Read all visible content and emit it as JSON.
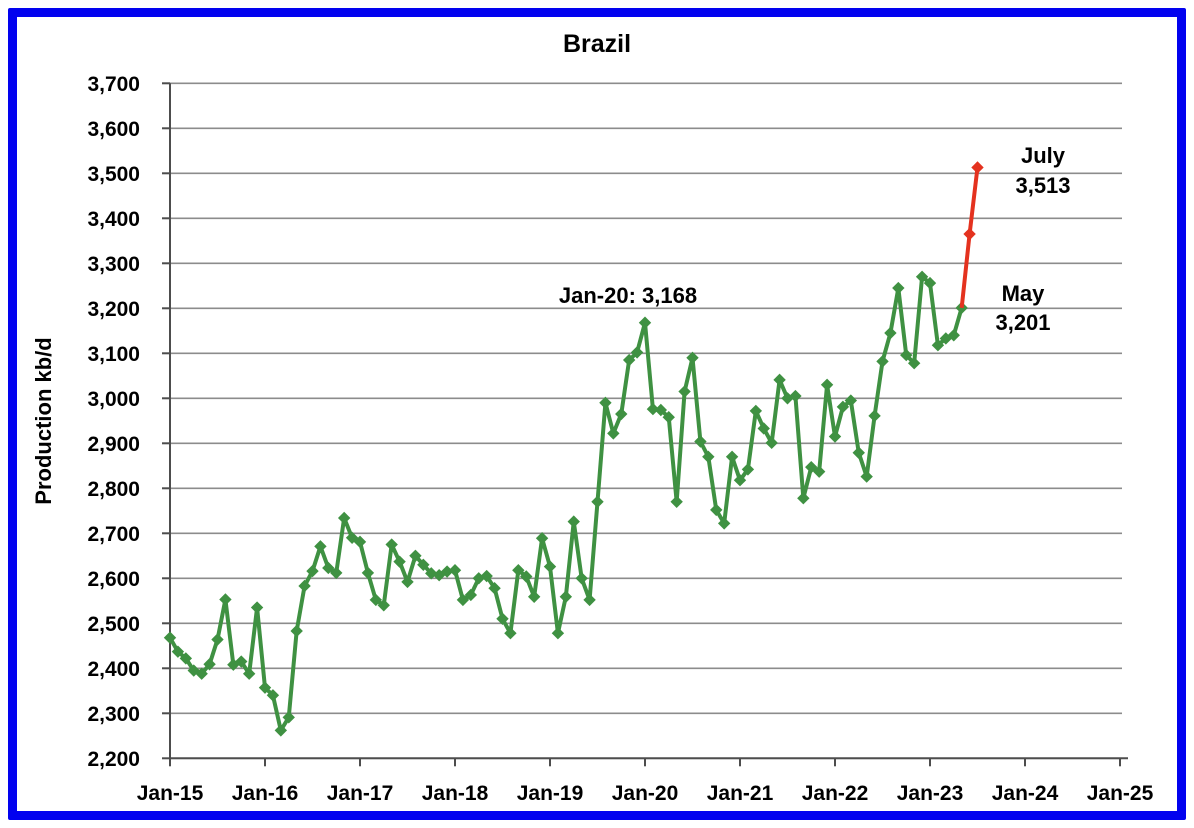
{
  "title": "Brazil",
  "y_axis": {
    "label": "Production kb/d",
    "min": 2200,
    "max": 3700,
    "step": 100,
    "tick_labels": [
      "2,200",
      "2,300",
      "2,400",
      "2,500",
      "2,600",
      "2,700",
      "2,800",
      "2,900",
      "3,000",
      "3,100",
      "3,200",
      "3,300",
      "3,400",
      "3,500",
      "3,600",
      "3,700"
    ]
  },
  "x_axis": {
    "tick_labels": [
      "Jan-15",
      "Jan-16",
      "Jan-17",
      "Jan-18",
      "Jan-19",
      "Jan-20",
      "Jan-21",
      "Jan-22",
      "Jan-23",
      "Jan-24",
      "Jan-25"
    ]
  },
  "colors": {
    "history_green": "#3f9142",
    "recent_red": "#e4321f",
    "gridline_gray": "#8c8c8c",
    "axis_gray": "#4d4d4d",
    "frame_blue": "#0202ef"
  },
  "chart_data": {
    "type": "line",
    "title": "Brazil",
    "xlabel": "",
    "ylabel": "Production kb/d",
    "ylim": [
      2200,
      3700
    ],
    "x_range": [
      "Jan-15",
      "Jan-25"
    ],
    "frequency": "monthly",
    "grid": "horizontal-only",
    "legend": "none",
    "series": [
      {
        "name": "Brazil production history (monthly, Jan-15 to May-23)",
        "color": "#3f9142",
        "marker": "diamond",
        "start_index": 0,
        "values": [
          2468,
          2437,
          2422,
          2395,
          2388,
          2409,
          2464,
          2553,
          2408,
          2415,
          2388,
          2535,
          2357,
          2340,
          2262,
          2291,
          2483,
          2583,
          2616,
          2671,
          2623,
          2612,
          2734,
          2690,
          2681,
          2612,
          2552,
          2540,
          2675,
          2637,
          2592,
          2650,
          2630,
          2611,
          2607,
          2615,
          2618,
          2552,
          2563,
          2600,
          2605,
          2578,
          2510,
          2478,
          2618,
          2604,
          2559,
          2689,
          2626,
          2478,
          2559,
          2726,
          2600,
          2552,
          2770,
          2990,
          2922,
          2965,
          3085,
          3102,
          3168,
          2976,
          2974,
          2958,
          2770,
          3015,
          3090,
          2904,
          2870,
          2752,
          2722,
          2870,
          2818,
          2842,
          2972,
          2933,
          2901,
          3041,
          3000,
          3005,
          2778,
          2847,
          2837,
          3030,
          2915,
          2981,
          2995,
          2879,
          2826,
          2961,
          3082,
          3145,
          3245,
          3096,
          3078,
          3270,
          3256,
          3118,
          3133,
          3140,
          3201
        ]
      },
      {
        "name": "Recent months May-23 to Jul-23",
        "color": "#e4321f",
        "marker": "diamond",
        "start_index": 100,
        "values": [
          3201,
          3365,
          3513
        ]
      }
    ],
    "annotations": [
      {
        "lines": [
          "Jan-20: 3,168"
        ]
      },
      {
        "lines": [
          "July",
          "3,513"
        ]
      },
      {
        "lines": [
          "May",
          "3,201"
        ]
      }
    ]
  }
}
